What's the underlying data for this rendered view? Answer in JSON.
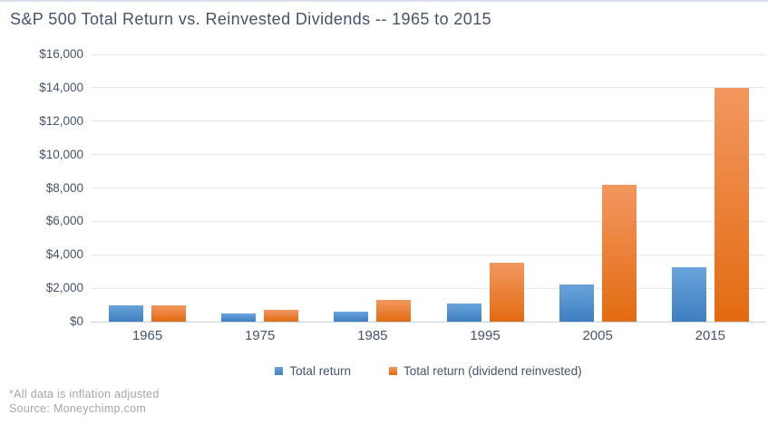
{
  "title": "S&P 500 Total Return vs. Reinvested Dividends -- 1965 to 2015",
  "chart_data": {
    "type": "bar",
    "title": "S&P 500 Total Return vs. Reinvested Dividends -- 1965 to 2015",
    "categories": [
      "1965",
      "1975",
      "1985",
      "1995",
      "2005",
      "2015"
    ],
    "series": [
      {
        "name": "Total return",
        "color": "#4E8FCC",
        "values": [
          1000,
          500,
          600,
          1100,
          2250,
          3250
        ]
      },
      {
        "name": "Total return (dividend reinvested)",
        "color": "#ED7D31",
        "values": [
          1000,
          700,
          1300,
          3500,
          8200,
          14000
        ]
      }
    ],
    "xlabel": "",
    "ylabel": "",
    "ylim": [
      0,
      16000
    ],
    "ytick_step": 2000,
    "ytick_labels": [
      "$0",
      "$2,000",
      "$4,000",
      "$6,000",
      "$8,000",
      "$10,000",
      "$12,000",
      "$14,000",
      "$16,000"
    ],
    "grid": true,
    "legend_position": "bottom-center"
  },
  "footnotes": {
    "line1": "*All data is inflation adjusted",
    "line2": "Source: Moneychimp.com"
  },
  "colors": {
    "text": "#44546A",
    "gridline": "#E4E9F0",
    "axis_line": "#C9D1DB",
    "footnote": "#A6A6A6",
    "blue_top": "#69A4DB",
    "blue_bottom": "#3E7EC0",
    "orange_top": "#F29760",
    "orange_bottom": "#E26B11",
    "top_strip": "#D9DFE8"
  }
}
